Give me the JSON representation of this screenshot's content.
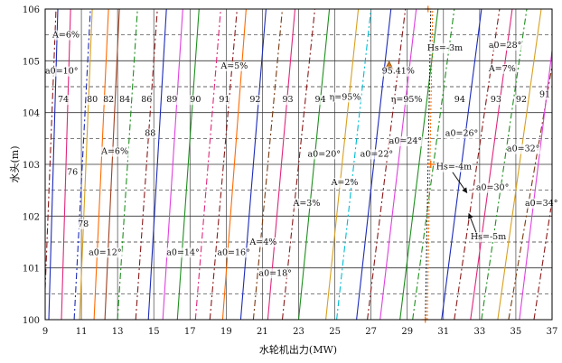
{
  "chart_data": {
    "type": "line",
    "xlabel": "水轮机出力(MW)",
    "ylabel": "水头(m)",
    "xlim": [
      9,
      37
    ],
    "ylim": [
      100,
      106
    ],
    "xticks": [
      "9",
      "11",
      "13",
      "15",
      "17",
      "19",
      "21",
      "23",
      "25",
      "27",
      "29",
      "31",
      "33",
      "35",
      "37"
    ],
    "yticks": [
      "100",
      "101",
      "102",
      "103",
      "104",
      "105",
      "106"
    ],
    "minor_gridlines_y": [
      100.5,
      101.5,
      102.5,
      103.5,
      104.5,
      105.5
    ],
    "solid_efficiency_lines": [
      {
        "color": "#1c2bb8",
        "p": [
          [
            9.2,
            100
          ],
          [
            9.7,
            106
          ]
        ]
      },
      {
        "color": "#e0267a",
        "p": [
          [
            9.9,
            100
          ],
          [
            10.4,
            106
          ]
        ]
      },
      {
        "color": "#d8a020",
        "p": [
          [
            10.9,
            100
          ],
          [
            11.6,
            106
          ]
        ]
      },
      {
        "color": "#ff6a00",
        "p": [
          [
            11.7,
            100
          ],
          [
            12.5,
            106
          ]
        ]
      },
      {
        "color": "#a04020",
        "p": [
          [
            12.3,
            100
          ],
          [
            13.1,
            106
          ]
        ]
      },
      {
        "color": "#1c2bb8",
        "p": [
          [
            14.7,
            100
          ],
          [
            15.7,
            106
          ]
        ]
      },
      {
        "color": "#e040e0",
        "p": [
          [
            15.5,
            100
          ],
          [
            16.6,
            106
          ]
        ]
      },
      {
        "color": "#1e8f1e",
        "p": [
          [
            16.3,
            100
          ],
          [
            17.5,
            106
          ]
        ]
      },
      {
        "color": "#ff6a00",
        "p": [
          [
            18.8,
            100
          ],
          [
            20.1,
            106
          ]
        ]
      },
      {
        "color": "#1c2bb8",
        "p": [
          [
            19.8,
            100
          ],
          [
            21.2,
            106
          ]
        ]
      },
      {
        "color": "#e0267a",
        "p": [
          [
            21.3,
            100
          ],
          [
            22.8,
            106
          ]
        ]
      },
      {
        "color": "#1e8f1e",
        "p": [
          [
            23.0,
            100
          ],
          [
            24.7,
            106
          ]
        ]
      },
      {
        "color": "#d8a020",
        "p": [
          [
            24.5,
            100
          ],
          [
            26.3,
            106
          ]
        ]
      },
      {
        "color": "#1c2bb8",
        "p": [
          [
            26.2,
            100
          ],
          [
            28.1,
            106
          ]
        ]
      },
      {
        "color": "#e040e0",
        "p": [
          [
            27.5,
            100
          ],
          [
            29.5,
            106
          ]
        ]
      },
      {
        "color": "#1e8f1e",
        "p": [
          [
            28.6,
            100
          ],
          [
            30.7,
            106
          ]
        ]
      },
      {
        "color": "#1c2bb8",
        "p": [
          [
            30.9,
            100
          ],
          [
            33.1,
            106
          ]
        ]
      },
      {
        "color": "#e0267a",
        "p": [
          [
            32.5,
            100
          ],
          [
            34.8,
            106
          ]
        ]
      },
      {
        "color": "#d8a020",
        "p": [
          [
            34.0,
            100
          ],
          [
            36.4,
            106
          ]
        ]
      },
      {
        "color": "#e040e0",
        "p": [
          [
            35.2,
            100
          ],
          [
            37.0,
            105.2
          ]
        ]
      }
    ],
    "dashdot_opening_lines": [
      {
        "color": "#8a1a1a",
        "p": [
          [
            9.0,
            100.6
          ],
          [
            9.6,
            106
          ]
        ]
      },
      {
        "color": "#1c2bb8",
        "p": [
          [
            10.6,
            100
          ],
          [
            11.5,
            106
          ]
        ]
      },
      {
        "color": "#1e8f1e",
        "p": [
          [
            13.0,
            100
          ],
          [
            14.1,
            106
          ]
        ]
      },
      {
        "color": "#8a1a1a",
        "p": [
          [
            14.0,
            100
          ],
          [
            15.2,
            106
          ]
        ]
      },
      {
        "color": "#e0267a",
        "p": [
          [
            17.3,
            100
          ],
          [
            18.7,
            106
          ]
        ]
      },
      {
        "color": "#8a1a1a",
        "p": [
          [
            18.1,
            100
          ],
          [
            19.6,
            106
          ]
        ]
      },
      {
        "color": "#7a3a10",
        "p": [
          [
            20.5,
            100
          ],
          [
            22.1,
            106
          ]
        ]
      },
      {
        "color": "#8a1a1a",
        "p": [
          [
            22.1,
            100
          ],
          [
            23.9,
            106
          ]
        ]
      },
      {
        "color": "#00bcd4",
        "p": [
          [
            25.1,
            100
          ],
          [
            27.0,
            106
          ]
        ]
      },
      {
        "color": "#8a1a1a",
        "p": [
          [
            26.8,
            100
          ],
          [
            28.9,
            106
          ]
        ]
      },
      {
        "color": "#1e8f1e",
        "p": [
          [
            29.3,
            100
          ],
          [
            31.6,
            106
          ]
        ]
      },
      {
        "color": "#8a1a1a",
        "p": [
          [
            31.6,
            100
          ],
          [
            34.1,
            106
          ]
        ]
      },
      {
        "color": "#1e8f1e",
        "p": [
          [
            33.1,
            100
          ],
          [
            35.6,
            106
          ]
        ]
      },
      {
        "color": "#7a3a10",
        "p": [
          [
            34.6,
            100
          ],
          [
            37.0,
            104.9
          ]
        ]
      },
      {
        "color": "#8a1a1a",
        "p": [
          [
            36.0,
            100
          ],
          [
            37.0,
            102.3
          ]
        ]
      }
    ],
    "hs_curves": [
      {
        "label": "Hs=-3m",
        "color": "#222222",
        "p": [
          [
            30.0,
            100
          ],
          [
            30.3,
            106
          ]
        ]
      },
      {
        "label": "Hs=-4m",
        "color": "#ff6a00",
        "p": [
          [
            30.1,
            100
          ],
          [
            30.4,
            106
          ]
        ]
      }
    ],
    "markers": [
      {
        "label": "95.41%",
        "x": 28.0,
        "y": 104.9,
        "color": "#d47a1a",
        "shape": "triangle"
      },
      {
        "label": "",
        "x": 30.3,
        "y": 103.0,
        "color": "#ff6a00",
        "shape": "star"
      }
    ],
    "annotations": [
      {
        "text": "A=6%",
        "x": 9.4,
        "y": 105.45
      },
      {
        "text": "a0=10°",
        "x": 9.0,
        "y": 104.75
      },
      {
        "text": "74",
        "x": 9.7,
        "y": 104.2
      },
      {
        "text": "80",
        "x": 11.3,
        "y": 104.2
      },
      {
        "text": "82",
        "x": 12.2,
        "y": 104.2
      },
      {
        "text": "84",
        "x": 13.1,
        "y": 104.2
      },
      {
        "text": "86",
        "x": 14.3,
        "y": 104.2
      },
      {
        "text": "89",
        "x": 15.7,
        "y": 104.2
      },
      {
        "text": "90",
        "x": 17.0,
        "y": 104.2
      },
      {
        "text": "91",
        "x": 18.6,
        "y": 104.2
      },
      {
        "text": "92",
        "x": 20.3,
        "y": 104.2
      },
      {
        "text": "93",
        "x": 22.1,
        "y": 104.2
      },
      {
        "text": "94",
        "x": 23.9,
        "y": 104.2
      },
      {
        "text": "A=5%",
        "x": 18.7,
        "y": 104.85
      },
      {
        "text": "η=95%",
        "x": 24.7,
        "y": 104.25
      },
      {
        "text": "95.41%",
        "x": 27.6,
        "y": 104.75
      },
      {
        "text": "η=95%",
        "x": 28.1,
        "y": 104.2
      },
      {
        "text": "Hs=-3m",
        "x": 30.1,
        "y": 105.2
      },
      {
        "text": "a0=28°",
        "x": 33.5,
        "y": 105.25
      },
      {
        "text": "A=7%",
        "x": 33.5,
        "y": 104.8
      },
      {
        "text": "94",
        "x": 31.6,
        "y": 104.2
      },
      {
        "text": "93",
        "x": 33.6,
        "y": 104.2
      },
      {
        "text": "92",
        "x": 35.0,
        "y": 104.2
      },
      {
        "text": "91",
        "x": 36.3,
        "y": 104.3
      },
      {
        "text": "88",
        "x": 14.5,
        "y": 103.55
      },
      {
        "text": "A=6%",
        "x": 12.1,
        "y": 103.2
      },
      {
        "text": "a0=24°",
        "x": 28.0,
        "y": 103.4
      },
      {
        "text": "a0=26°",
        "x": 31.1,
        "y": 103.55
      },
      {
        "text": "a0=20°",
        "x": 23.5,
        "y": 103.15
      },
      {
        "text": "a0=22°",
        "x": 26.4,
        "y": 103.15
      },
      {
        "text": "a0=32°",
        "x": 34.5,
        "y": 103.25
      },
      {
        "text": "76",
        "x": 10.2,
        "y": 102.8
      },
      {
        "text": "Hs=-4m",
        "x": 30.6,
        "y": 102.9
      },
      {
        "text": "A=2%",
        "x": 24.8,
        "y": 102.6
      },
      {
        "text": "a0=30°",
        "x": 32.8,
        "y": 102.5
      },
      {
        "text": "A=3%",
        "x": 22.7,
        "y": 102.2
      },
      {
        "text": "a0=34°",
        "x": 35.5,
        "y": 102.2
      },
      {
        "text": "78",
        "x": 10.8,
        "y": 101.8
      },
      {
        "text": "Hs=-5m",
        "x": 32.5,
        "y": 101.55
      },
      {
        "text": "A=4%",
        "x": 20.3,
        "y": 101.45
      },
      {
        "text": "a0=12°",
        "x": 11.4,
        "y": 101.25
      },
      {
        "text": "a0=14°",
        "x": 15.7,
        "y": 101.25
      },
      {
        "text": "a0=16°",
        "x": 18.5,
        "y": 101.25
      },
      {
        "text": "a0=18°",
        "x": 20.8,
        "y": 100.85
      }
    ],
    "arrows": [
      {
        "from": [
          31.5,
          102.85
        ],
        "to": [
          32.3,
          102.45
        ]
      },
      {
        "from": [
          32.9,
          101.6
        ],
        "to": [
          32.4,
          102.05
        ]
      }
    ],
    "grid": true,
    "legend": "none"
  }
}
